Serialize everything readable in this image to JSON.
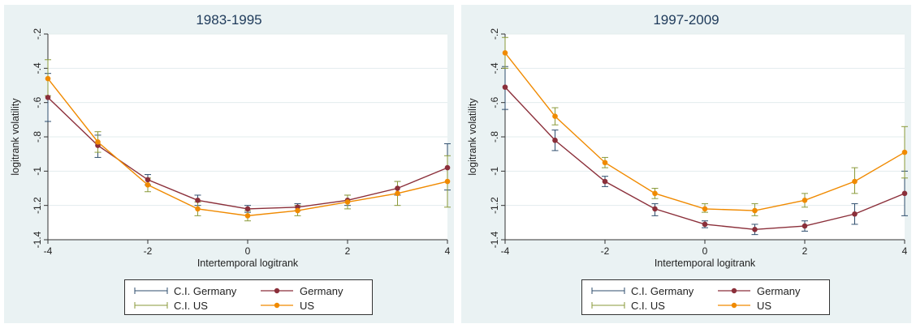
{
  "panels": [
    {
      "title": "1983-1995",
      "legend": [
        {
          "key": "ci_germany",
          "label": "C.I. Germany"
        },
        {
          "key": "germany",
          "label": "Germany"
        },
        {
          "key": "ci_us",
          "label": "C.I. US"
        },
        {
          "key": "us",
          "label": "US"
        }
      ]
    },
    {
      "title": "1997-2009",
      "legend": [
        {
          "key": "ci_germany",
          "label": "C.I. Germany"
        },
        {
          "key": "germany",
          "label": "Germany"
        },
        {
          "key": "ci_us",
          "label": "C.I. US"
        },
        {
          "key": "us",
          "label": "US"
        }
      ]
    }
  ],
  "colors": {
    "germany": "#8b2f3a",
    "us": "#f08a00",
    "ci_germany": "#2f4e6e",
    "ci_us": "#8a9a3a",
    "panel_bg": "#eaf2f3",
    "grid": "#e3ecee"
  },
  "chart_data": [
    {
      "type": "line",
      "title": "1983-1995",
      "xlabel": "Intertemporal logitrank",
      "ylabel": "logitrank volatility",
      "xlim": [
        -4,
        4
      ],
      "ylim": [
        -1.4,
        -0.2
      ],
      "xticks": [
        -4,
        -2,
        0,
        2,
        4
      ],
      "yticks": [
        -0.2,
        -0.4,
        -0.6,
        -0.8,
        -1,
        -1.2,
        -1.4
      ],
      "ytick_labels": [
        "-.2",
        "-.4",
        "-.6",
        "-.8",
        "-1",
        "-1.2",
        "-1.4"
      ],
      "grid": true,
      "legend_position": "bottom",
      "x": [
        -4,
        -3,
        -2,
        -1,
        0,
        1,
        2,
        3,
        4
      ],
      "series": [
        {
          "name": "Germany",
          "values": [
            -0.57,
            -0.85,
            -1.05,
            -1.17,
            -1.22,
            -1.21,
            -1.17,
            -1.1,
            -0.98
          ],
          "ci_name": "C.I. Germany",
          "ci_low": [
            -0.71,
            -0.92,
            -1.08,
            -1.2,
            -1.24,
            -1.23,
            -1.2,
            -1.14,
            -1.11
          ],
          "ci_high": [
            -0.43,
            -0.79,
            -1.02,
            -1.14,
            -1.2,
            -1.19,
            -1.14,
            -1.06,
            -0.84
          ]
        },
        {
          "name": "US",
          "values": [
            -0.46,
            -0.83,
            -1.08,
            -1.22,
            -1.26,
            -1.23,
            -1.18,
            -1.13,
            -1.06
          ],
          "ci_name": "C.I. US",
          "ci_low": [
            -0.56,
            -0.89,
            -1.12,
            -1.26,
            -1.29,
            -1.26,
            -1.22,
            -1.2,
            -1.21
          ],
          "ci_high": [
            -0.35,
            -0.77,
            -1.04,
            -1.18,
            -1.23,
            -1.2,
            -1.14,
            -1.06,
            -0.91
          ]
        }
      ]
    },
    {
      "type": "line",
      "title": "1997-2009",
      "xlabel": "Intertemporal logitrank",
      "ylabel": "logitrank volatility",
      "xlim": [
        -4,
        4
      ],
      "ylim": [
        -1.4,
        -0.2
      ],
      "xticks": [
        -4,
        -2,
        0,
        2,
        4
      ],
      "yticks": [
        -0.2,
        -0.4,
        -0.6,
        -0.8,
        -1,
        -1.2,
        -1.4
      ],
      "ytick_labels": [
        "-.2",
        "-.4",
        "-.6",
        "-.8",
        "-1",
        "-1.2",
        "-1.4"
      ],
      "grid": true,
      "legend_position": "bottom",
      "x": [
        -4,
        -3,
        -2,
        -1,
        0,
        1,
        2,
        3,
        4
      ],
      "series": [
        {
          "name": "Germany",
          "values": [
            -0.51,
            -0.82,
            -1.06,
            -1.22,
            -1.31,
            -1.34,
            -1.32,
            -1.25,
            -1.13
          ],
          "ci_name": "C.I. Germany",
          "ci_low": [
            -0.64,
            -0.88,
            -1.09,
            -1.26,
            -1.33,
            -1.37,
            -1.35,
            -1.31,
            -1.26
          ],
          "ci_high": [
            -0.39,
            -0.76,
            -1.03,
            -1.19,
            -1.29,
            -1.31,
            -1.29,
            -1.19,
            -1.0
          ]
        },
        {
          "name": "US",
          "values": [
            -0.31,
            -0.68,
            -0.95,
            -1.13,
            -1.22,
            -1.23,
            -1.17,
            -1.06,
            -0.89
          ],
          "ci_name": "C.I. US",
          "ci_low": [
            -0.4,
            -0.73,
            -0.98,
            -1.16,
            -1.24,
            -1.26,
            -1.21,
            -1.13,
            -1.04
          ],
          "ci_high": [
            -0.22,
            -0.63,
            -0.92,
            -1.1,
            -1.19,
            -1.19,
            -1.13,
            -0.98,
            -0.74
          ]
        }
      ]
    }
  ]
}
